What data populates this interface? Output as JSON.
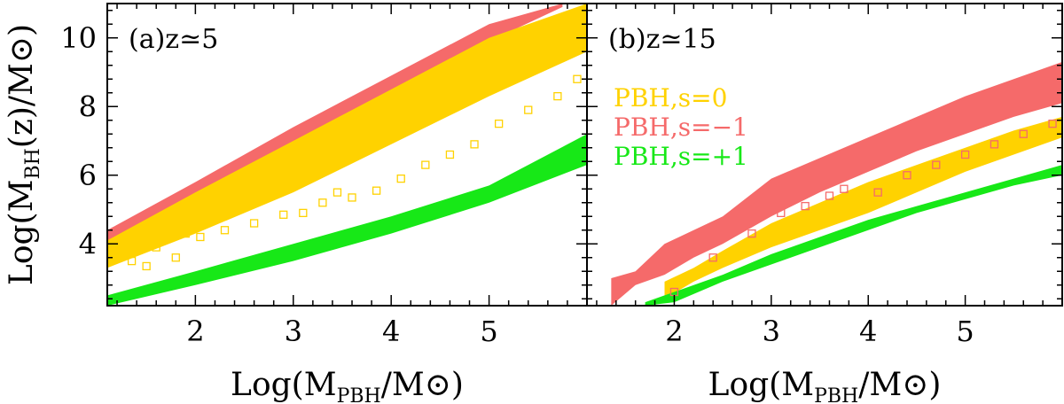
{
  "colors": {
    "s0": "#ffd200",
    "s_minus1": "#f56a6a",
    "s_plus1": "#17e817",
    "axis": "#000000"
  },
  "chart_data": [
    {
      "type": "scatter",
      "panel_label": "(a)z≃5",
      "xlabel": "Log(M_PBH/M⊙)",
      "ylabel": "Log(M_BH(z)/M⊙)",
      "xlim": [
        1.1,
        6.0
      ],
      "ylim": [
        2.2,
        11.0
      ],
      "xticks": [
        2,
        3,
        4,
        5
      ],
      "yticks": [
        4,
        6,
        8,
        10
      ],
      "series": [
        {
          "name": "PBH,s=−1",
          "color_key": "s_minus1",
          "x": [
            1.1,
            2.0,
            3.0,
            4.0,
            5.0,
            5.75
          ],
          "y_low": [
            4.05,
            5.4,
            6.9,
            8.4,
            9.9,
            10.9
          ],
          "y_high": [
            4.4,
            5.8,
            7.4,
            8.9,
            10.4,
            11.0
          ]
        },
        {
          "name": "PBH,s=0",
          "color_key": "s0",
          "x": [
            1.1,
            2.0,
            3.0,
            4.0,
            5.0,
            6.0
          ],
          "y_low": [
            3.3,
            4.3,
            5.5,
            6.9,
            8.3,
            9.6
          ],
          "y_high": [
            4.1,
            5.5,
            7.0,
            8.5,
            10.0,
            11.0
          ]
        },
        {
          "name": "PBH,s=+1",
          "color_key": "s_plus1",
          "x": [
            1.1,
            2.0,
            3.0,
            4.0,
            5.0,
            6.0
          ],
          "y_low": [
            2.2,
            2.8,
            3.5,
            4.3,
            5.2,
            6.3
          ],
          "y_high": [
            2.5,
            3.2,
            4.0,
            4.8,
            5.7,
            7.2
          ]
        }
      ],
      "outliers": {
        "color_key": "s0",
        "x": [
          1.35,
          1.5,
          1.6,
          1.8,
          1.9,
          2.05,
          2.3,
          2.6,
          2.9,
          3.1,
          3.3,
          3.45,
          3.6,
          3.85,
          4.1,
          4.35,
          4.6,
          4.85,
          5.1,
          5.4,
          5.7,
          5.9
        ],
        "y": [
          3.5,
          3.35,
          3.9,
          3.6,
          4.3,
          4.2,
          4.4,
          4.6,
          4.85,
          4.9,
          5.2,
          5.5,
          5.35,
          5.55,
          5.9,
          6.3,
          6.6,
          6.9,
          7.5,
          7.9,
          8.3,
          8.8
        ]
      }
    },
    {
      "type": "scatter",
      "panel_label": "(b)z≃15",
      "xlabel": "Log(M_PBH/M⊙)",
      "ylabel": "",
      "xlim": [
        1.1,
        6.0
      ],
      "ylim": [
        2.2,
        11.0
      ],
      "xticks": [
        2,
        3,
        4,
        5
      ],
      "yticks": [
        4,
        6,
        8,
        10
      ],
      "legend": {
        "placement": "middle-left",
        "entries": [
          {
            "text": "PBH,s=0",
            "color_key": "s0"
          },
          {
            "text": "PBH,s=−1",
            "color_key": "s_minus1"
          },
          {
            "text": "PBH,s=+1",
            "color_key": "s_plus1"
          }
        ]
      },
      "series": [
        {
          "name": "PBH,s=−1",
          "color_key": "s_minus1",
          "x": [
            1.35,
            1.6,
            1.9,
            2.2,
            2.5,
            3.0,
            3.5,
            4.0,
            4.5,
            5.0,
            5.5,
            6.0
          ],
          "y_low": [
            2.2,
            2.8,
            3.1,
            3.6,
            4.0,
            4.8,
            5.5,
            6.1,
            6.7,
            7.2,
            7.7,
            8.1
          ],
          "y_high": [
            3.0,
            3.2,
            4.0,
            4.4,
            4.8,
            5.9,
            6.5,
            7.1,
            7.7,
            8.3,
            8.8,
            9.3
          ]
        },
        {
          "name": "PBH,s=0",
          "color_key": "s0",
          "x": [
            1.9,
            2.2,
            2.5,
            3.0,
            3.5,
            4.0,
            4.5,
            5.0,
            5.5,
            6.0
          ],
          "y_low": [
            2.4,
            2.9,
            3.3,
            3.9,
            4.4,
            4.9,
            5.5,
            6.1,
            6.6,
            7.1
          ],
          "y_high": [
            2.9,
            3.3,
            3.8,
            4.6,
            5.2,
            5.8,
            6.3,
            6.8,
            7.3,
            7.7
          ]
        },
        {
          "name": "PBH,s=+1",
          "color_key": "s_plus1",
          "x": [
            1.7,
            2.0,
            2.5,
            3.0,
            3.5,
            4.0,
            4.5,
            5.0,
            5.5,
            6.0
          ],
          "y_low": [
            2.2,
            2.3,
            2.9,
            3.4,
            3.9,
            4.4,
            4.9,
            5.3,
            5.7,
            6.0
          ],
          "y_high": [
            2.3,
            2.6,
            3.1,
            3.7,
            4.2,
            4.7,
            5.1,
            5.5,
            5.9,
            6.3
          ]
        }
      ],
      "outliers": {
        "color_key": "s_minus1",
        "x": [
          2.0,
          2.4,
          2.8,
          3.1,
          3.35,
          3.6,
          3.75,
          4.1,
          4.4,
          4.7,
          5.0,
          5.3,
          5.6,
          5.9
        ],
        "y": [
          2.6,
          3.6,
          4.3,
          4.9,
          5.1,
          5.4,
          5.6,
          5.5,
          6.0,
          6.3,
          6.6,
          6.9,
          7.2,
          7.5
        ]
      }
    }
  ]
}
